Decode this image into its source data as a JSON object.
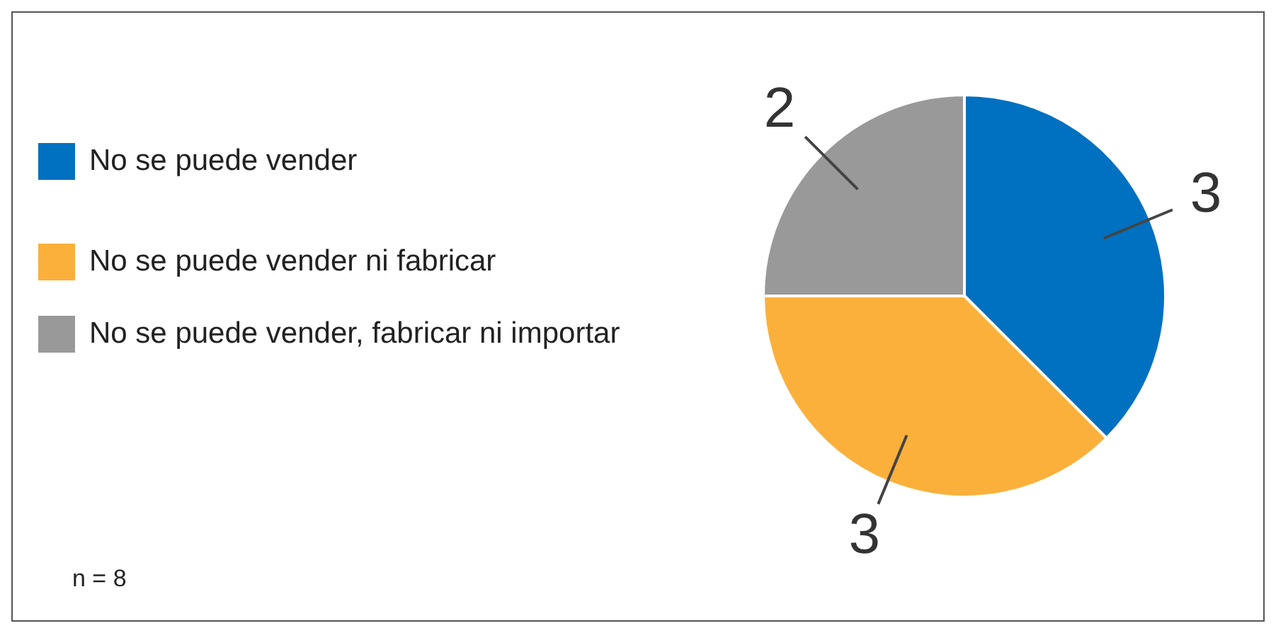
{
  "chart_data": {
    "type": "pie",
    "categories": [
      "No se puede vender",
      "No se puede vender ni fabricar",
      "No se puede vender, fabricar ni importar"
    ],
    "values": [
      3,
      3,
      2
    ],
    "colors": [
      "#0070c0",
      "#fbb03b",
      "#999999"
    ],
    "data_labels": true,
    "legend": "left",
    "annotations": [
      "n = 8"
    ]
  }
}
